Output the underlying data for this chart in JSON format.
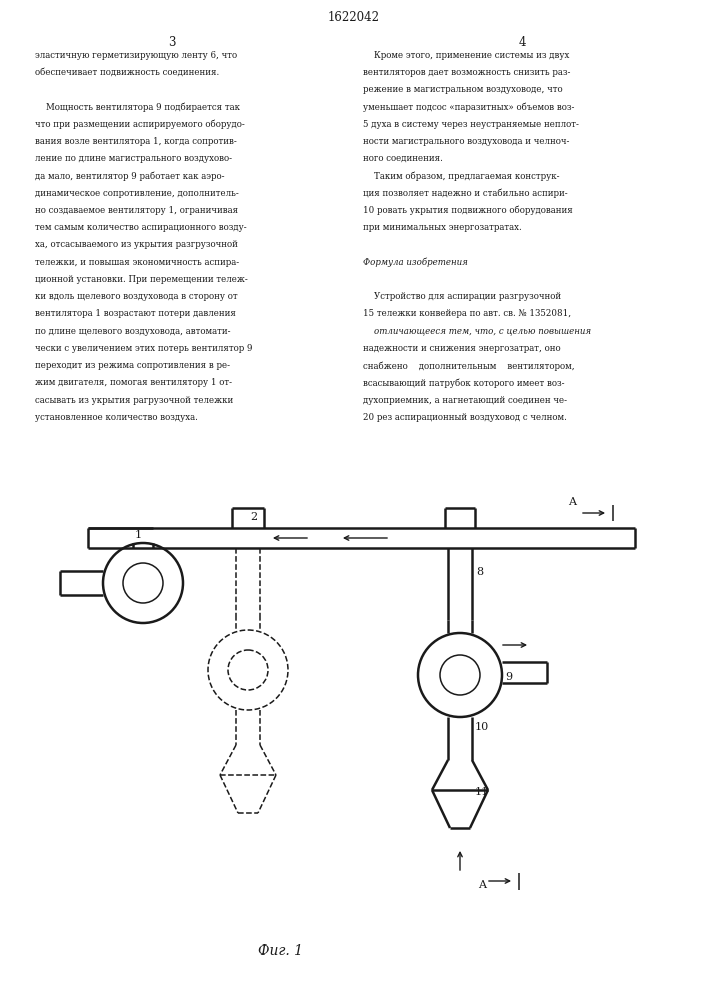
{
  "page_number": "1622042",
  "col_left": "3",
  "col_right": "4",
  "bg_color": "#ffffff",
  "text_color": "#1a1a1a",
  "left_text": [
    "эластичную герметизирующую ленту 6, что",
    "обеспечивает подвижность соединения.",
    "",
    "    Мощность вентилятора 9 подбирается так",
    "что при размещении аспирируемого оборудо-",
    "вания возле вентилятора 1, когда сопротив-",
    "ление по длине магистрального воздухово-",
    "да мало, вентилятор 9 работает как аэро-",
    "динамическое сопротивление, дополнитель-",
    "но создаваемое вентилятору 1, ограничивая",
    "тем самым количество аспирационного возду-",
    "ха, отсасываемого из укрытия разгрузочной",
    "тележки, и повышая экономичность аспира-",
    "ционной установки. При перемещении тележ-",
    "ки вдоль щелевого воздуховода в сторону от",
    "вентилятора 1 возрастают потери давления",
    "по длине щелевого воздуховода, автомати-",
    "чески с увеличением этих потерь вентилятор 9",
    "переходит из режима сопротивления в ре-",
    "жим двигателя, помогая вентилятору 1 от-",
    "сасывать из укрытия рагрузочной тележки",
    "установленное количество воздуха."
  ],
  "right_text_lines": [
    "    Кроме этого, применение системы из двух",
    "вентиляторов дает возможность снизить раз-",
    "режение в магистральном воздуховоде, что",
    "уменьшает подсос «паразитных» объемов воз-",
    "5 духа в систему через неустраняемые неплот-",
    "ности магистрального воздуховода и челноч-",
    "ного соединения.",
    "    Таким образом, предлагаемая конструк-",
    "ция позволяет надежно и стабильно аспири-",
    "10 ровать укрытия подвижного оборудования",
    "при минимальных энергозатратах.",
    "",
    "Формула изобретения",
    "",
    "    Устройство для аспирации разгрузочной",
    "15 тележки конвейера по авт. св. № 1352081,",
    "    отличающееся тем, что, с целью повышения",
    "надежности и снижения энергозатрат, оно",
    "снабжено    дополнительным    вентилятором,",
    "всасывающий патрубок которого имеет воз-",
    "духоприемник, а нагнетающий соединен че-",
    "20 рез аспирационный воздуховод с челном."
  ],
  "fig_label": "Фиг. 1"
}
